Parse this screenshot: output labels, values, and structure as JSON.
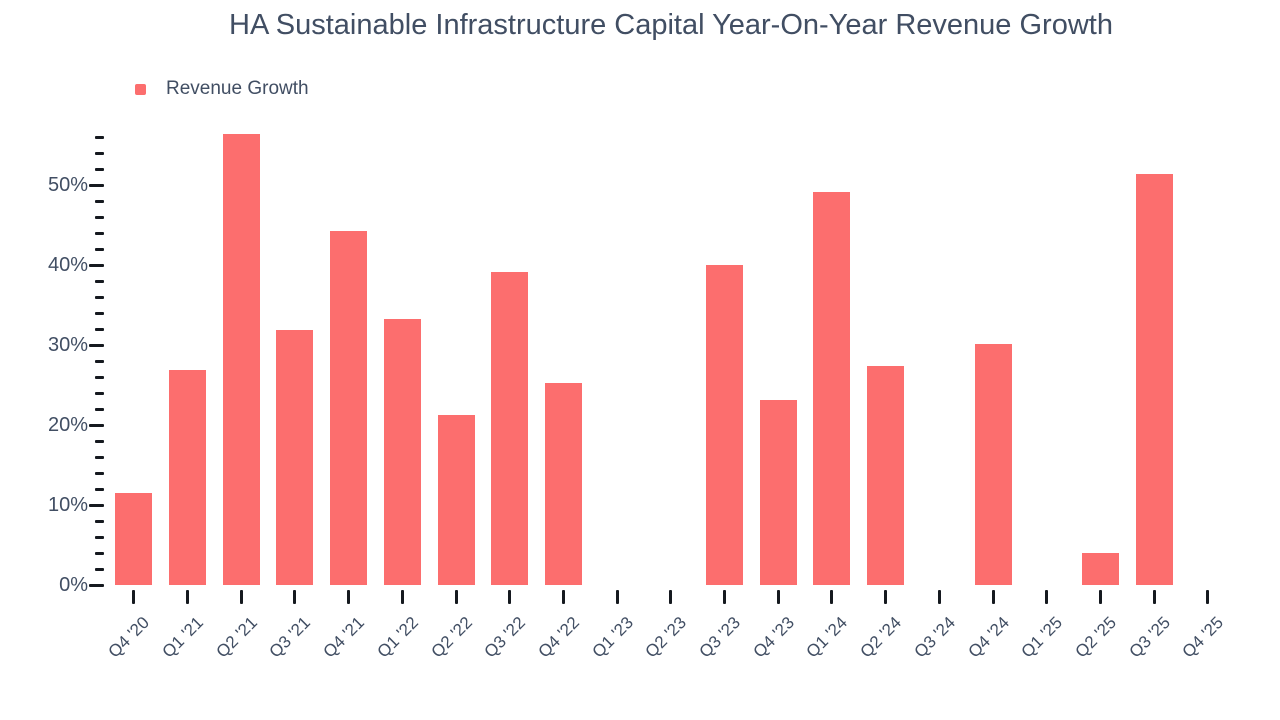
{
  "colors": {
    "bar": "#fc6e6e",
    "text": "#414e63",
    "tick": "#15191f",
    "background": "#ffffff"
  },
  "legend": {
    "label": "Revenue Growth",
    "marker_color": "#fc6e6e"
  },
  "chart_data": {
    "type": "bar",
    "title": "HA Sustainable Infrastructure Capital Year-On-Year Revenue Growth",
    "series_name": "Revenue Growth",
    "xlabel": "",
    "ylabel": "",
    "grid": false,
    "legend_position": "top-left",
    "categories": [
      "Q4 '20",
      "Q1 '21",
      "Q2 '21",
      "Q3 '21",
      "Q4 '21",
      "Q1 '22",
      "Q2 '22",
      "Q3 '22",
      "Q4 '22",
      "Q1 '23",
      "Q2 '23",
      "Q3 '23",
      "Q4 '23",
      "Q1 '24",
      "Q2 '24",
      "Q3 '24",
      "Q4 '24",
      "Q1 '25",
      "Q2 '25",
      "Q3 '25",
      "Q4 '25"
    ],
    "values": [
      11.5,
      26.9,
      56.4,
      31.9,
      44.2,
      33.2,
      21.2,
      39.1,
      25.2,
      null,
      null,
      40.0,
      23.1,
      49.1,
      27.4,
      null,
      30.1,
      null,
      4.0,
      51.4,
      null
    ],
    "value_unit": "%",
    "y_axis": {
      "min": 0,
      "max_tick": 56,
      "minor_step": 2,
      "major_step": 10,
      "major_labels": [
        "0%",
        "10%",
        "20%",
        "30%",
        "40%",
        "50%"
      ]
    }
  }
}
